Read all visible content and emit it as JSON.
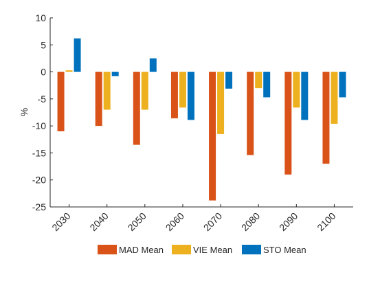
{
  "chart_data": {
    "type": "bar",
    "ylabel": "%",
    "ylim": [
      -25,
      10
    ],
    "yticks": [
      10,
      5,
      0,
      -5,
      -10,
      -15,
      -20,
      -25
    ],
    "categories": [
      "2030",
      "2040",
      "2050",
      "2060",
      "2070",
      "2080",
      "2090",
      "2100"
    ],
    "series": [
      {
        "name": "MAD Mean",
        "color": "#D95319",
        "values": [
          -11.0,
          -10.0,
          -13.5,
          -8.6,
          -23.8,
          -15.4,
          -19.0,
          -17.0
        ]
      },
      {
        "name": "VIE Mean",
        "color": "#EDB120",
        "values": [
          0.3,
          -7.0,
          -7.0,
          -6.6,
          -11.5,
          -3.0,
          -6.6,
          -9.6
        ]
      },
      {
        "name": "STO Mean",
        "color": "#0072BD",
        "values": [
          6.2,
          -0.8,
          2.5,
          -8.9,
          -3.1,
          -4.7,
          -8.9,
          -4.7
        ]
      }
    ],
    "grid": false,
    "legend_position": "bottom"
  }
}
